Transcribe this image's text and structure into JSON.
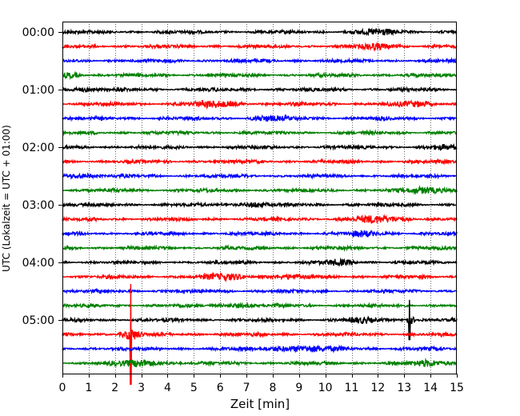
{
  "chart_data": {
    "type": "line",
    "title": "",
    "xlabel": "Zeit  [min]",
    "ylabel": "UTC (Lokalzeit = UTC + 01:00)",
    "xlim": [
      0,
      15
    ],
    "x_ticks": [
      0,
      1,
      2,
      3,
      4,
      5,
      6,
      7,
      8,
      9,
      10,
      11,
      12,
      13,
      14,
      15
    ],
    "y_tick_labels": [
      "00:00",
      "01:00",
      "02:00",
      "03:00",
      "04:00",
      "05:00"
    ],
    "minutes_per_trace": 15,
    "grid": "vertical dotted lines at each minute",
    "trace_colors": [
      "#000000",
      "#ff0000",
      "#0000ff",
      "#008000"
    ],
    "traces": [
      {
        "start": "00:00",
        "events": [
          {
            "t": 12,
            "amp": 0.45,
            "w": 0.8
          }
        ]
      },
      {
        "start": "00:15",
        "events": [
          {
            "t": 12,
            "amp": 0.5,
            "w": 0.6
          }
        ]
      },
      {
        "start": "00:30",
        "events": []
      },
      {
        "start": "00:45",
        "events": [
          {
            "t": 0.3,
            "amp": 0.4,
            "w": 0.4
          }
        ]
      },
      {
        "start": "01:00",
        "events": [
          {
            "t": 0.6,
            "amp": 0.35,
            "w": 0.5
          }
        ]
      },
      {
        "start": "01:15",
        "events": [
          {
            "t": 5.8,
            "amp": 0.5,
            "w": 0.9
          },
          {
            "t": 13.4,
            "amp": 0.4,
            "w": 0.7
          }
        ]
      },
      {
        "start": "01:30",
        "events": [
          {
            "t": 7.8,
            "amp": 0.4,
            "w": 0.6
          }
        ]
      },
      {
        "start": "01:45",
        "events": []
      },
      {
        "start": "02:00",
        "events": [
          {
            "t": 14.4,
            "amp": 0.4,
            "w": 0.4
          }
        ]
      },
      {
        "start": "02:15",
        "events": []
      },
      {
        "start": "02:30",
        "events": [
          {
            "t": 0.6,
            "amp": 0.45,
            "w": 0.5
          }
        ]
      },
      {
        "start": "02:45",
        "events": [
          {
            "t": 14,
            "amp": 0.5,
            "w": 0.9
          }
        ]
      },
      {
        "start": "03:00",
        "events": [
          {
            "t": 7.2,
            "amp": 0.4,
            "w": 0.6
          }
        ]
      },
      {
        "start": "03:15",
        "events": [
          {
            "t": 12,
            "amp": 0.55,
            "w": 1.0
          }
        ]
      },
      {
        "start": "03:30",
        "events": [
          {
            "t": 11.5,
            "amp": 0.4,
            "w": 0.6
          }
        ]
      },
      {
        "start": "03:45",
        "events": []
      },
      {
        "start": "04:00",
        "events": [
          {
            "t": 10.5,
            "amp": 0.4,
            "w": 0.6
          }
        ]
      },
      {
        "start": "04:15",
        "events": [
          {
            "t": 6.2,
            "amp": 0.5,
            "w": 0.8
          },
          {
            "t": 8.5,
            "amp": 0.35,
            "w": 0.6
          }
        ]
      },
      {
        "start": "04:30",
        "events": []
      },
      {
        "start": "04:45",
        "events": [
          {
            "t": 6.6,
            "amp": 0.35,
            "w": 0.5
          }
        ]
      },
      {
        "start": "05:00",
        "events": [
          {
            "t": 11.4,
            "amp": 0.35,
            "w": 0.6
          },
          {
            "t": 13.2,
            "amp": 0.9,
            "w": 0.2,
            "spike": 1.4
          }
        ]
      },
      {
        "start": "05:15",
        "events": [
          {
            "t": 2.6,
            "amp": 0.9,
            "w": 0.35,
            "spike": 3.5
          }
        ]
      },
      {
        "start": "05:30",
        "events": [
          {
            "t": 9.0,
            "amp": 0.5,
            "w": 1.4
          }
        ]
      },
      {
        "start": "05:45",
        "events": [
          {
            "t": 3.0,
            "amp": 0.55,
            "w": 0.9
          },
          {
            "t": 14.0,
            "amp": 0.45,
            "w": 0.8
          }
        ]
      }
    ]
  }
}
